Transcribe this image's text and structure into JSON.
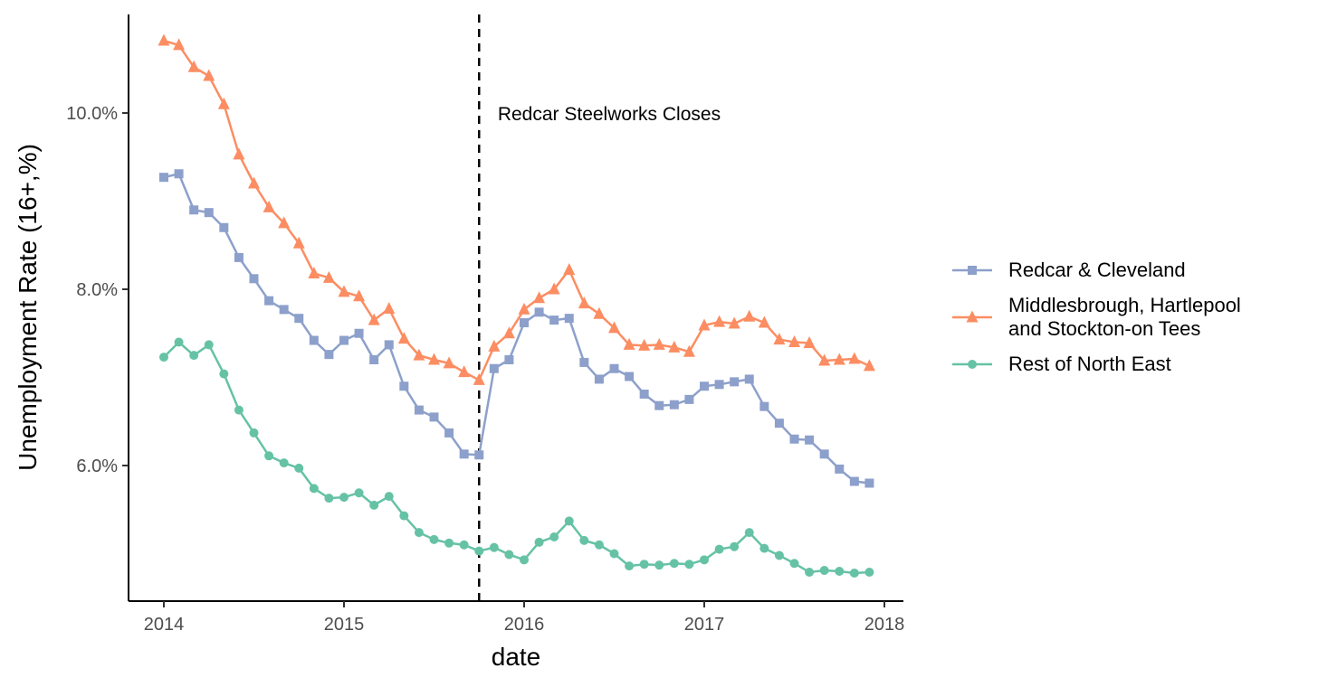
{
  "chart_data": {
    "type": "line",
    "xlabel": "date",
    "ylabel": "Unemployment Rate (16+,%)",
    "x_domain": [
      "2014-01",
      "2018-01"
    ],
    "ylim": [
      4.5,
      11.0
    ],
    "x_ticks": [
      {
        "value": "2014-01",
        "label": "2014"
      },
      {
        "value": "2015-01",
        "label": "2015"
      },
      {
        "value": "2016-01",
        "label": "2016"
      },
      {
        "value": "2017-01",
        "label": "2017"
      },
      {
        "value": "2018-01",
        "label": "2018"
      }
    ],
    "y_ticks": [
      {
        "value": 6.0,
        "label": "6.0%"
      },
      {
        "value": 8.0,
        "label": "8.0%"
      },
      {
        "value": 10.0,
        "label": "10.0%"
      }
    ],
    "x": [
      "2014-01",
      "2014-02",
      "2014-03",
      "2014-04",
      "2014-05",
      "2014-06",
      "2014-07",
      "2014-08",
      "2014-09",
      "2014-10",
      "2014-11",
      "2014-12",
      "2015-01",
      "2015-02",
      "2015-03",
      "2015-04",
      "2015-05",
      "2015-06",
      "2015-07",
      "2015-08",
      "2015-09",
      "2015-10",
      "2015-11",
      "2015-12",
      "2016-01",
      "2016-02",
      "2016-03",
      "2016-04",
      "2016-05",
      "2016-06",
      "2016-07",
      "2016-08",
      "2016-09",
      "2016-10",
      "2016-11",
      "2016-12",
      "2017-01",
      "2017-02",
      "2017-03",
      "2017-04",
      "2017-05",
      "2017-06",
      "2017-07",
      "2017-08",
      "2017-09",
      "2017-10",
      "2017-11",
      "2017-12"
    ],
    "series": [
      {
        "name": "Redcar & Cleveland",
        "color": "#8DA0CB",
        "marker": "square",
        "values": [
          9.27,
          9.31,
          8.9,
          8.87,
          8.7,
          8.36,
          8.12,
          7.87,
          7.77,
          7.67,
          7.42,
          7.26,
          7.42,
          7.5,
          7.2,
          7.37,
          6.9,
          6.63,
          6.55,
          6.37,
          6.13,
          6.12,
          7.1,
          7.2,
          7.62,
          7.74,
          7.65,
          7.67,
          7.17,
          6.98,
          7.1,
          7.01,
          6.81,
          6.68,
          6.69,
          6.75,
          6.9,
          6.92,
          6.95,
          6.98,
          6.67,
          6.48,
          6.3,
          6.29,
          6.13,
          5.96,
          5.82,
          5.8
        ]
      },
      {
        "name": "Middlesbrough, Hartlepool\nand Stockton-on Tees",
        "color": "#FC8D62",
        "marker": "triangle",
        "values": [
          10.82,
          10.77,
          10.52,
          10.42,
          10.1,
          9.53,
          9.2,
          8.93,
          8.75,
          8.52,
          8.18,
          8.13,
          7.97,
          7.92,
          7.65,
          7.78,
          7.44,
          7.25,
          7.2,
          7.16,
          7.06,
          6.97,
          7.35,
          7.5,
          7.77,
          7.9,
          8.0,
          8.22,
          7.84,
          7.72,
          7.56,
          7.37,
          7.36,
          7.37,
          7.34,
          7.29,
          7.59,
          7.63,
          7.61,
          7.69,
          7.62,
          7.43,
          7.4,
          7.39,
          7.19,
          7.2,
          7.21,
          7.13
        ]
      },
      {
        "name": "Rest of North East",
        "color": "#66C2A5",
        "marker": "circle",
        "values": [
          7.23,
          7.4,
          7.25,
          7.37,
          7.04,
          6.63,
          6.37,
          6.11,
          6.03,
          5.97,
          5.74,
          5.63,
          5.64,
          5.69,
          5.55,
          5.65,
          5.43,
          5.24,
          5.16,
          5.12,
          5.1,
          5.03,
          5.07,
          4.99,
          4.93,
          5.13,
          5.19,
          5.37,
          5.15,
          5.1,
          5.0,
          4.86,
          4.88,
          4.87,
          4.89,
          4.88,
          4.93,
          5.05,
          5.08,
          5.24,
          5.06,
          4.98,
          4.89,
          4.79,
          4.81,
          4.8,
          4.78,
          4.79
        ]
      }
    ],
    "vline": {
      "x": "2015-10",
      "style": "dashed"
    },
    "annotation": {
      "text": "Redcar Steelworks Closes",
      "x": "2015-11",
      "y": 10.0
    },
    "legend_position": "right",
    "grid": false
  }
}
